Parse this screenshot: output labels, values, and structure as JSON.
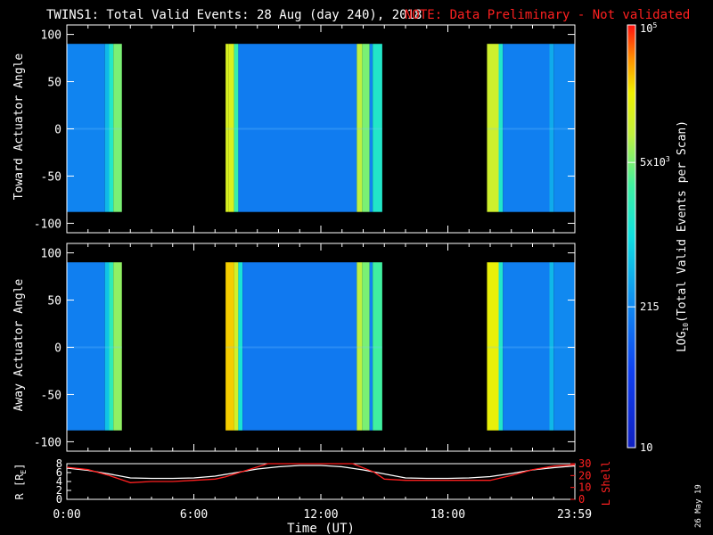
{
  "title": {
    "main": "TWINS1: Total Valid Events: 28 Aug (day 240), 2018",
    "note": "NOTE: Data Preliminary - Not validated"
  },
  "colors": {
    "background": "#000000",
    "axes": "#ffffff",
    "note": "#ff2020",
    "lshell": "#ff2020",
    "radius": "#ffffff"
  },
  "colorbar": {
    "label": "LOG10(Total Valid Events per Scan)",
    "tick_labels": [
      "10",
      "215",
      "5x10^3",
      "10^5"
    ],
    "tick_values": [
      10,
      215,
      5000,
      100000
    ],
    "scale": "log",
    "colormap": "rainbow (blue-cyan-green-yellow-red)"
  },
  "footer_date": "26 May 19",
  "chart_data": [
    {
      "type": "heatmap",
      "panel": "top",
      "ylabel": "Toward Actuator Angle",
      "ylim": [
        -110,
        110
      ],
      "y_tick_labels": [
        "100",
        "50",
        "0",
        "-50",
        "-100"
      ],
      "y_extent": [
        -88,
        90
      ],
      "xlim": [
        0,
        24
      ],
      "data_blocks": [
        {
          "start": 0.0,
          "end": 2.6
        },
        {
          "start": 7.5,
          "end": 14.9
        },
        {
          "start": 19.85,
          "end": 24.0
        }
      ],
      "columns": [
        {
          "t0": 0.0,
          "t1": 1.8,
          "value": 200
        },
        {
          "t0": 1.8,
          "t1": 2.0,
          "value": 500
        },
        {
          "t0": 2.0,
          "t1": 2.2,
          "value": 1500
        },
        {
          "t0": 2.2,
          "t1": 2.6,
          "value": 5000
        },
        {
          "t0": 7.5,
          "t1": 7.65,
          "value": 14000
        },
        {
          "t0": 7.65,
          "t1": 7.9,
          "value": 15000
        },
        {
          "t0": 7.9,
          "t1": 8.1,
          "value": 2500
        },
        {
          "t0": 8.1,
          "t1": 13.7,
          "value": 170
        },
        {
          "t0": 13.7,
          "t1": 13.95,
          "value": 9000
        },
        {
          "t0": 13.95,
          "t1": 14.3,
          "value": 5000
        },
        {
          "t0": 14.3,
          "t1": 14.45,
          "value": 200
        },
        {
          "t0": 14.45,
          "t1": 14.9,
          "value": 1500
        },
        {
          "t0": 19.85,
          "t1": 20.4,
          "value": 12000
        },
        {
          "t0": 20.4,
          "t1": 20.6,
          "value": 1500
        },
        {
          "t0": 20.6,
          "t1": 22.8,
          "value": 180
        },
        {
          "t0": 22.8,
          "t1": 23.0,
          "value": 400
        },
        {
          "t0": 23.0,
          "t1": 24.0,
          "value": 220
        }
      ]
    },
    {
      "type": "heatmap",
      "panel": "middle",
      "ylabel": "Away Actuator Angle",
      "ylim": [
        -110,
        110
      ],
      "y_tick_labels": [
        "100",
        "50",
        "0",
        "-50",
        "-100"
      ],
      "y_extent": [
        -88,
        90
      ],
      "xlim": [
        0,
        24
      ],
      "data_blocks": [
        {
          "start": 0.0,
          "end": 2.6
        },
        {
          "start": 7.5,
          "end": 14.9
        },
        {
          "start": 19.85,
          "end": 24.0
        }
      ],
      "columns": [
        {
          "t0": 0.0,
          "t1": 1.8,
          "value": 180
        },
        {
          "t0": 1.8,
          "t1": 2.0,
          "value": 600
        },
        {
          "t0": 2.0,
          "t1": 2.2,
          "value": 2000
        },
        {
          "t0": 2.2,
          "t1": 2.6,
          "value": 6000
        },
        {
          "t0": 7.5,
          "t1": 7.9,
          "value": 30000
        },
        {
          "t0": 7.9,
          "t1": 8.1,
          "value": 12000
        },
        {
          "t0": 8.1,
          "t1": 8.3,
          "value": 1200
        },
        {
          "t0": 8.3,
          "t1": 13.7,
          "value": 160
        },
        {
          "t0": 13.7,
          "t1": 13.95,
          "value": 9000
        },
        {
          "t0": 13.95,
          "t1": 14.3,
          "value": 5000
        },
        {
          "t0": 14.3,
          "t1": 14.45,
          "value": 200
        },
        {
          "t0": 14.45,
          "t1": 14.9,
          "value": 3000
        },
        {
          "t0": 19.85,
          "t1": 20.4,
          "value": 20000
        },
        {
          "t0": 20.4,
          "t1": 20.6,
          "value": 1500
        },
        {
          "t0": 20.6,
          "t1": 22.8,
          "value": 180
        },
        {
          "t0": 22.8,
          "t1": 23.0,
          "value": 500
        },
        {
          "t0": 23.0,
          "t1": 24.0,
          "value": 220
        }
      ]
    },
    {
      "type": "line",
      "panel": "bottom",
      "xlabel": "Time (UT)",
      "x_tick_labels": [
        "0:00",
        "6:00",
        "12:00",
        "18:00",
        "23:59"
      ],
      "x_tick_values": [
        0,
        6,
        12,
        18,
        23.98
      ],
      "xlim": [
        0,
        24
      ],
      "ylabel_left": "R [RE]",
      "ylim_left": [
        0,
        8
      ],
      "y_tick_labels_left": [
        "0",
        "2",
        "4",
        "6",
        "8"
      ],
      "ylabel_right": "L Shell",
      "ylim_right": [
        0,
        30
      ],
      "y_tick_labels_right": [
        "0",
        "10",
        "20",
        "30"
      ],
      "series": [
        {
          "axis": "left",
          "x": [
            0,
            1,
            2,
            3,
            4,
            5,
            6,
            7,
            8,
            9,
            10,
            11,
            12,
            13,
            14,
            15,
            16,
            17,
            18,
            19,
            20,
            21,
            22,
            23,
            24
          ],
          "y": [
            7.0,
            6.5,
            5.7,
            4.8,
            4.7,
            4.7,
            4.8,
            5.2,
            6.0,
            6.8,
            7.3,
            7.6,
            7.6,
            7.3,
            6.6,
            5.7,
            4.8,
            4.7,
            4.7,
            4.8,
            5.1,
            5.8,
            6.6,
            7.1,
            7.5
          ]
        },
        {
          "axis": "right",
          "x": [
            0,
            1,
            2,
            3,
            4,
            5,
            6,
            7,
            7.5,
            9.5,
            10.5,
            13.5,
            14.5,
            15,
            16,
            17,
            18,
            19,
            20,
            21,
            22,
            23,
            24
          ],
          "y": [
            27,
            25,
            20,
            14,
            15,
            15,
            16,
            17,
            19,
            30,
            30,
            30,
            23,
            17,
            16,
            16,
            16,
            16,
            16,
            20,
            25,
            28,
            29
          ]
        }
      ]
    }
  ]
}
